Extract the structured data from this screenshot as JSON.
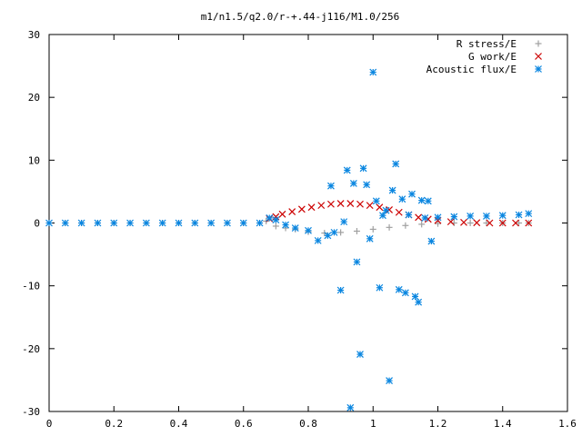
{
  "chart_data": {
    "type": "scatter",
    "title": "m1/n1.5/q2.0/r-+.44-j116/M1.0/256",
    "xlabel": "",
    "ylabel": "",
    "xlim": [
      0,
      1.6
    ],
    "ylim": [
      -30,
      30
    ],
    "x_ticks": [
      0,
      0.2,
      0.4,
      0.6,
      0.8,
      1,
      1.2,
      1.4,
      1.6
    ],
    "x_tick_labels": [
      "0",
      "0.2",
      "0.4",
      "0.6",
      "0.8",
      "1",
      "1.2",
      "1.4",
      "1.6"
    ],
    "y_ticks": [
      -30,
      -20,
      -10,
      0,
      10,
      20,
      30
    ],
    "y_tick_labels": [
      "-30",
      "-20",
      "-10",
      "0",
      "10",
      "20",
      "30"
    ],
    "grid": false,
    "legend_position": "top-right",
    "series": [
      {
        "name": "R stress/E",
        "marker": "plus",
        "color": "#a0a0a0",
        "x": [
          0.0,
          0.05,
          0.1,
          0.15,
          0.2,
          0.25,
          0.3,
          0.35,
          0.4,
          0.45,
          0.5,
          0.55,
          0.6,
          0.65,
          0.67,
          0.7,
          0.73,
          0.76,
          0.8,
          0.85,
          0.9,
          0.95,
          1.0,
          1.05,
          1.1,
          1.15,
          1.2,
          1.25,
          1.3,
          1.35,
          1.4,
          1.45,
          1.48
        ],
        "y": [
          0,
          0,
          0,
          0,
          0,
          0,
          0,
          0,
          0,
          0,
          0,
          0,
          0,
          0,
          0.3,
          -0.5,
          -0.8,
          -1.0,
          -1.4,
          -1.6,
          -1.5,
          -1.3,
          -1.0,
          -0.7,
          -0.4,
          -0.2,
          -0.1,
          0,
          0,
          0,
          0,
          0,
          0
        ]
      },
      {
        "name": "G work/E",
        "marker": "cross",
        "color": "#cc0000",
        "x": [
          0.68,
          0.7,
          0.72,
          0.75,
          0.78,
          0.81,
          0.84,
          0.87,
          0.9,
          0.93,
          0.96,
          0.99,
          1.02,
          1.05,
          1.08,
          1.11,
          1.14,
          1.17,
          1.2,
          1.24,
          1.28,
          1.32,
          1.36,
          1.4,
          1.44,
          1.48
        ],
        "y": [
          0.7,
          1.0,
          1.4,
          1.8,
          2.2,
          2.5,
          2.8,
          3.0,
          3.1,
          3.1,
          3.0,
          2.8,
          2.5,
          2.1,
          1.7,
          1.3,
          0.9,
          0.6,
          0.4,
          0.2,
          0.1,
          0.05,
          0,
          0,
          0,
          0
        ]
      },
      {
        "name": "Acoustic flux/E",
        "marker": "star",
        "color": "#0a86e0",
        "x": [
          0.0,
          0.05,
          0.1,
          0.15,
          0.2,
          0.25,
          0.3,
          0.35,
          0.4,
          0.45,
          0.5,
          0.55,
          0.6,
          0.65,
          0.68,
          0.7,
          0.73,
          0.76,
          0.8,
          0.83,
          0.86,
          0.87,
          0.88,
          0.9,
          0.91,
          0.92,
          0.93,
          0.94,
          0.95,
          0.96,
          0.97,
          0.98,
          0.99,
          1.0,
          1.01,
          1.02,
          1.03,
          1.04,
          1.05,
          1.06,
          1.07,
          1.08,
          1.09,
          1.1,
          1.11,
          1.12,
          1.13,
          1.14,
          1.15,
          1.16,
          1.17,
          1.18,
          1.2,
          1.25,
          1.3,
          1.35,
          1.4,
          1.45,
          1.48
        ],
        "y": [
          0,
          0,
          0,
          0,
          0,
          0,
          0,
          0,
          0,
          0,
          0,
          0,
          0,
          0,
          0.8,
          0.5,
          -0.3,
          -0.8,
          -1.2,
          -2.8,
          -2.0,
          5.9,
          -1.5,
          -10.7,
          0.2,
          8.4,
          -29.4,
          6.3,
          -6.2,
          -20.9,
          8.7,
          6.1,
          -2.5,
          24.0,
          3.5,
          -10.3,
          1.2,
          2.0,
          -25.1,
          5.2,
          9.4,
          -10.6,
          3.8,
          -11.1,
          1.3,
          4.6,
          -11.7,
          -12.6,
          3.6,
          0.8,
          3.5,
          -2.9,
          0.9,
          1.0,
          1.1,
          1.1,
          1.2,
          1.3,
          1.5
        ]
      }
    ]
  }
}
